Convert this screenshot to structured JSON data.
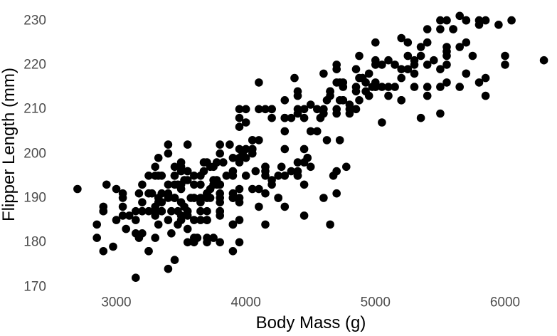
{
  "chart_data": {
    "type": "scatter",
    "title": "",
    "xlabel": "Body Mass (g)",
    "ylabel": "Flipper Length (mm)",
    "x_ticks": [
      3000,
      4000,
      5000,
      6000
    ],
    "y_ticks": [
      170,
      180,
      190,
      200,
      210,
      220,
      230
    ],
    "xlim": [
      2569,
      6401
    ],
    "ylim": [
      168.5,
      233.3
    ],
    "grid": false,
    "legend": false,
    "n_points": 342,
    "marker": {
      "color": "#000000",
      "radius_px": 5.8
    },
    "colors": {
      "background": "#ffffff",
      "tick_label": "#4d4d4d",
      "axis_title": "#000000"
    },
    "points": [
      [
        3750,
        181
      ],
      [
        3800,
        186
      ],
      [
        3250,
        195
      ],
      [
        3450,
        193
      ],
      [
        3650,
        190
      ],
      [
        3625,
        181
      ],
      [
        4675,
        195
      ],
      [
        3475,
        193
      ],
      [
        4250,
        190
      ],
      [
        3300,
        186
      ],
      [
        3700,
        180
      ],
      [
        3200,
        182
      ],
      [
        3800,
        191
      ],
      [
        4400,
        198
      ],
      [
        3700,
        185
      ],
      [
        3450,
        195
      ],
      [
        4500,
        197
      ],
      [
        3325,
        184
      ],
      [
        4200,
        194
      ],
      [
        3400,
        174
      ],
      [
        3600,
        180
      ],
      [
        3800,
        189
      ],
      [
        3950,
        185
      ],
      [
        3800,
        180
      ],
      [
        3800,
        187
      ],
      [
        3550,
        183
      ],
      [
        3200,
        187
      ],
      [
        3150,
        172
      ],
      [
        3950,
        180
      ],
      [
        3250,
        178
      ],
      [
        3900,
        178
      ],
      [
        3300,
        188
      ],
      [
        3900,
        184
      ],
      [
        3325,
        195
      ],
      [
        4150,
        196
      ],
      [
        3950,
        190
      ],
      [
        3550,
        180
      ],
      [
        3300,
        181
      ],
      [
        4650,
        184
      ],
      [
        3150,
        182
      ],
      [
        3900,
        195
      ],
      [
        3100,
        186
      ],
      [
        4400,
        196
      ],
      [
        3000,
        185
      ],
      [
        4600,
        190
      ],
      [
        3425,
        182
      ],
      [
        2975,
        179
      ],
      [
        3450,
        190
      ],
      [
        4150,
        191
      ],
      [
        3500,
        186
      ],
      [
        4300,
        188
      ],
      [
        3450,
        190
      ],
      [
        4050,
        200
      ],
      [
        2900,
        187
      ],
      [
        3700,
        191
      ],
      [
        3550,
        186
      ],
      [
        3800,
        193
      ],
      [
        2850,
        181
      ],
      [
        3750,
        194
      ],
      [
        3150,
        185
      ],
      [
        4400,
        195
      ],
      [
        3600,
        185
      ],
      [
        4050,
        192
      ],
      [
        2850,
        184
      ],
      [
        3950,
        192
      ],
      [
        3350,
        195
      ],
      [
        4100,
        188
      ],
      [
        3050,
        190
      ],
      [
        4450,
        198
      ],
      [
        3600,
        190
      ],
      [
        3900,
        190
      ],
      [
        3550,
        196
      ],
      [
        4150,
        197
      ],
      [
        3700,
        190
      ],
      [
        4250,
        195
      ],
      [
        3700,
        191
      ],
      [
        3900,
        184
      ],
      [
        3550,
        187
      ],
      [
        4000,
        195
      ],
      [
        3200,
        189
      ],
      [
        4700,
        196
      ],
      [
        3800,
        187
      ],
      [
        4200,
        193
      ],
      [
        3350,
        191
      ],
      [
        3550,
        194
      ],
      [
        3800,
        190
      ],
      [
        3500,
        189
      ],
      [
        3950,
        189
      ],
      [
        3600,
        190
      ],
      [
        3550,
        202
      ],
      [
        4300,
        205
      ],
      [
        3400,
        185
      ],
      [
        4450,
        186
      ],
      [
        3300,
        187
      ],
      [
        4300,
        208
      ],
      [
        3700,
        190
      ],
      [
        4350,
        196
      ],
      [
        2900,
        178
      ],
      [
        4100,
        192
      ],
      [
        3725,
        192
      ],
      [
        4725,
        203
      ],
      [
        3075,
        183
      ],
      [
        4250,
        190
      ],
      [
        2925,
        193
      ],
      [
        4150,
        184
      ],
      [
        3950,
        199
      ],
      [
        3900,
        190
      ],
      [
        3175,
        181
      ],
      [
        4775,
        197
      ],
      [
        3825,
        198
      ],
      [
        4700,
        191
      ],
      [
        3200,
        193
      ],
      [
        4275,
        197
      ],
      [
        3900,
        191
      ],
      [
        4075,
        196
      ],
      [
        2900,
        188
      ],
      [
        4475,
        199
      ],
      [
        3350,
        189
      ],
      [
        3325,
        189
      ],
      [
        3150,
        187
      ],
      [
        3500,
        198
      ],
      [
        3450,
        176
      ],
      [
        3875,
        202
      ],
      [
        3050,
        186
      ],
      [
        4000,
        199
      ],
      [
        3275,
        191
      ],
      [
        4300,
        195
      ],
      [
        3050,
        191
      ],
      [
        4000,
        210
      ],
      [
        3325,
        190
      ],
      [
        3500,
        197
      ],
      [
        3500,
        193
      ],
      [
        4475,
        199
      ],
      [
        3425,
        187
      ],
      [
        3900,
        190
      ],
      [
        3175,
        191
      ],
      [
        3975,
        200
      ],
      [
        3500,
        185
      ],
      [
        4450,
        193
      ],
      [
        3400,
        193
      ],
      [
        3475,
        187
      ],
      [
        3050,
        188
      ],
      [
        3725,
        190
      ],
      [
        3000,
        192
      ],
      [
        3650,
        185
      ],
      [
        4250,
        190
      ],
      [
        3475,
        184
      ],
      [
        3450,
        195
      ],
      [
        3750,
        193
      ],
      [
        3700,
        187
      ],
      [
        4000,
        201
      ],
      [
        4500,
        211
      ],
      [
        5700,
        230
      ],
      [
        4450,
        210
      ],
      [
        5700,
        218
      ],
      [
        5400,
        215
      ],
      [
        4550,
        210
      ],
      [
        4800,
        211
      ],
      [
        5200,
        219
      ],
      [
        4400,
        209
      ],
      [
        5150,
        215
      ],
      [
        4650,
        214
      ],
      [
        5550,
        216
      ],
      [
        4650,
        214
      ],
      [
        5850,
        213
      ],
      [
        4200,
        210
      ],
      [
        5850,
        217
      ],
      [
        4150,
        210
      ],
      [
        6300,
        221
      ],
      [
        4800,
        209
      ],
      [
        5350,
        222
      ],
      [
        5700,
        218
      ],
      [
        5000,
        215
      ],
      [
        4400,
        213
      ],
      [
        5050,
        215
      ],
      [
        5000,
        215
      ],
      [
        5100,
        215
      ],
      [
        4100,
        216
      ],
      [
        5650,
        215
      ],
      [
        4600,
        210
      ],
      [
        5550,
        220
      ],
      [
        5250,
        222
      ],
      [
        4700,
        209
      ],
      [
        5050,
        207
      ],
      [
        6050,
        230
      ],
      [
        5150,
        220
      ],
      [
        5400,
        220
      ],
      [
        4950,
        213
      ],
      [
        5250,
        219
      ],
      [
        4350,
        208
      ],
      [
        5350,
        208
      ],
      [
        3950,
        208
      ],
      [
        5700,
        225
      ],
      [
        4575,
        208
      ],
      [
        5800,
        216
      ],
      [
        5550,
        222
      ],
      [
        4900,
        217
      ],
      [
        4200,
        210
      ],
      [
        5400,
        225
      ],
      [
        5100,
        213
      ],
      [
        5300,
        215
      ],
      [
        4850,
        210
      ],
      [
        5300,
        220
      ],
      [
        4400,
        210
      ],
      [
        5000,
        225
      ],
      [
        4900,
        217
      ],
      [
        5050,
        220
      ],
      [
        4300,
        208
      ],
      [
        5000,
        220
      ],
      [
        4450,
        208
      ],
      [
        5550,
        224
      ],
      [
        4200,
        208
      ],
      [
        5300,
        221
      ],
      [
        4400,
        214
      ],
      [
        5650,
        231
      ],
      [
        4700,
        219
      ],
      [
        5700,
        230
      ],
      [
        4650,
        214
      ],
      [
        5800,
        229
      ],
      [
        4700,
        220
      ],
      [
        5550,
        223
      ],
      [
        4750,
        216
      ],
      [
        5000,
        221
      ],
      [
        5100,
        221
      ],
      [
        5200,
        217
      ],
      [
        4700,
        216
      ],
      [
        5800,
        230
      ],
      [
        4600,
        209
      ],
      [
        6000,
        220
      ],
      [
        4750,
        215
      ],
      [
        5200,
        212
      ],
      [
        4625,
        212
      ],
      [
        5450,
        221
      ],
      [
        4725,
        212
      ],
      [
        5350,
        224
      ],
      [
        4750,
        212
      ],
      [
        5600,
        228
      ],
      [
        4600,
        218
      ],
      [
        5300,
        218
      ],
      [
        4875,
        212
      ],
      [
        5550,
        230
      ],
      [
        4950,
        218
      ],
      [
        5400,
        228
      ],
      [
        4750,
        212
      ],
      [
        5650,
        224
      ],
      [
        4850,
        214
      ],
      [
        5200,
        226
      ],
      [
        4925,
        216
      ],
      [
        4875,
        222
      ],
      [
        4625,
        203
      ],
      [
        5250,
        225
      ],
      [
        4850,
        219
      ],
      [
        5600,
        228
      ],
      [
        4975,
        215
      ],
      [
        5500,
        228
      ],
      [
        4725,
        216
      ],
      [
        5500,
        215
      ],
      [
        4700,
        210
      ],
      [
        5500,
        219
      ],
      [
        4575,
        208
      ],
      [
        5500,
        209
      ],
      [
        5000,
        216
      ],
      [
        5950,
        229
      ],
      [
        4650,
        213
      ],
      [
        5500,
        230
      ],
      [
        4375,
        217
      ],
      [
        5850,
        230
      ],
      [
        4875,
        217
      ],
      [
        6000,
        222
      ],
      [
        4925,
        214
      ],
      [
        4850,
        215
      ],
      [
        5750,
        222
      ],
      [
        5200,
        212
      ],
      [
        5400,
        213
      ],
      [
        3500,
        192
      ],
      [
        3900,
        196
      ],
      [
        3650,
        193
      ],
      [
        3525,
        188
      ],
      [
        3725,
        197
      ],
      [
        3950,
        198
      ],
      [
        3250,
        178
      ],
      [
        3750,
        197
      ],
      [
        4150,
        195
      ],
      [
        3700,
        198
      ],
      [
        3800,
        193
      ],
      [
        3775,
        194
      ],
      [
        3700,
        185
      ],
      [
        4050,
        201
      ],
      [
        3575,
        190
      ],
      [
        4050,
        201
      ],
      [
        3300,
        197
      ],
      [
        3700,
        181
      ],
      [
        3450,
        190
      ],
      [
        4400,
        195
      ],
      [
        3600,
        181
      ],
      [
        3400,
        191
      ],
      [
        2900,
        187
      ],
      [
        3800,
        193
      ],
      [
        3300,
        195
      ],
      [
        4150,
        197
      ],
      [
        3400,
        200
      ],
      [
        3800,
        200
      ],
      [
        3700,
        191
      ],
      [
        4550,
        205
      ],
      [
        3200,
        187
      ],
      [
        4300,
        201
      ],
      [
        3350,
        187
      ],
      [
        4100,
        203
      ],
      [
        3600,
        195
      ],
      [
        3900,
        199
      ],
      [
        3850,
        195
      ],
      [
        4800,
        210
      ],
      [
        2700,
        192
      ],
      [
        4500,
        205
      ],
      [
        3950,
        210
      ],
      [
        3650,
        187
      ],
      [
        3550,
        196
      ],
      [
        3500,
        196
      ],
      [
        3675,
        196
      ],
      [
        4450,
        201
      ],
      [
        3400,
        190
      ],
      [
        4300,
        212
      ],
      [
        3250,
        187
      ],
      [
        3675,
        198
      ],
      [
        3325,
        199
      ],
      [
        3950,
        201
      ],
      [
        3600,
        193
      ],
      [
        4050,
        203
      ],
      [
        3350,
        187
      ],
      [
        3450,
        197
      ],
      [
        3250,
        191
      ],
      [
        4050,
        203
      ],
      [
        3800,
        202
      ],
      [
        3525,
        194
      ],
      [
        3950,
        206
      ],
      [
        3650,
        189
      ],
      [
        3650,
        195
      ],
      [
        4000,
        207
      ],
      [
        3400,
        202
      ],
      [
        3775,
        193
      ],
      [
        4100,
        210
      ],
      [
        3775,
        198
      ]
    ]
  }
}
